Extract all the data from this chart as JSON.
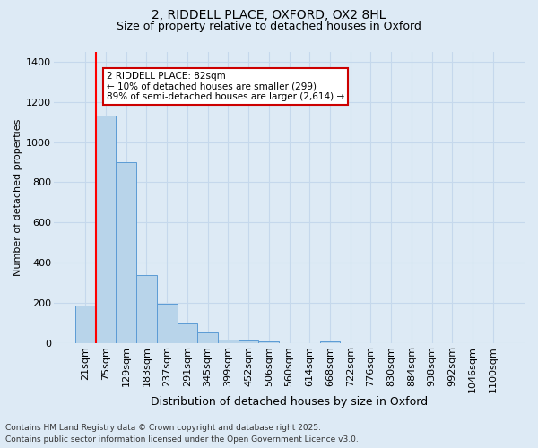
{
  "title_line1": "2, RIDDELL PLACE, OXFORD, OX2 8HL",
  "title_line2": "Size of property relative to detached houses in Oxford",
  "xlabel": "Distribution of detached houses by size in Oxford",
  "ylabel": "Number of detached properties",
  "categories": [
    "21sqm",
    "75sqm",
    "129sqm",
    "183sqm",
    "237sqm",
    "291sqm",
    "345sqm",
    "399sqm",
    "452sqm",
    "506sqm",
    "560sqm",
    "614sqm",
    "668sqm",
    "722sqm",
    "776sqm",
    "830sqm",
    "884sqm",
    "938sqm",
    "992sqm",
    "1046sqm",
    "1100sqm"
  ],
  "values": [
    190,
    1130,
    900,
    340,
    195,
    100,
    55,
    20,
    12,
    8,
    2,
    0,
    8,
    2,
    0,
    0,
    0,
    0,
    0,
    0,
    0
  ],
  "bar_color": "#b8d4ea",
  "bar_edge_color": "#5b9bd5",
  "background_color": "#ddeaf5",
  "plot_bg_color": "#ddeaf5",
  "grid_color": "#c5d8ec",
  "red_line_index": 1,
  "annotation_text": "2 RIDDELL PLACE: 82sqm\n← 10% of detached houses are smaller (299)\n89% of semi-detached houses are larger (2,614) →",
  "annotation_box_facecolor": "#ffffff",
  "annotation_box_edgecolor": "#cc0000",
  "footnote_line1": "Contains HM Land Registry data © Crown copyright and database right 2025.",
  "footnote_line2": "Contains public sector information licensed under the Open Government Licence v3.0.",
  "ylim": [
    0,
    1450
  ],
  "yticks": [
    0,
    200,
    400,
    600,
    800,
    1000,
    1200,
    1400
  ],
  "title1_fontsize": 10,
  "title2_fontsize": 9,
  "xlabel_fontsize": 9,
  "ylabel_fontsize": 8,
  "tick_fontsize": 8,
  "annot_fontsize": 7.5,
  "footnote_fontsize": 6.5
}
